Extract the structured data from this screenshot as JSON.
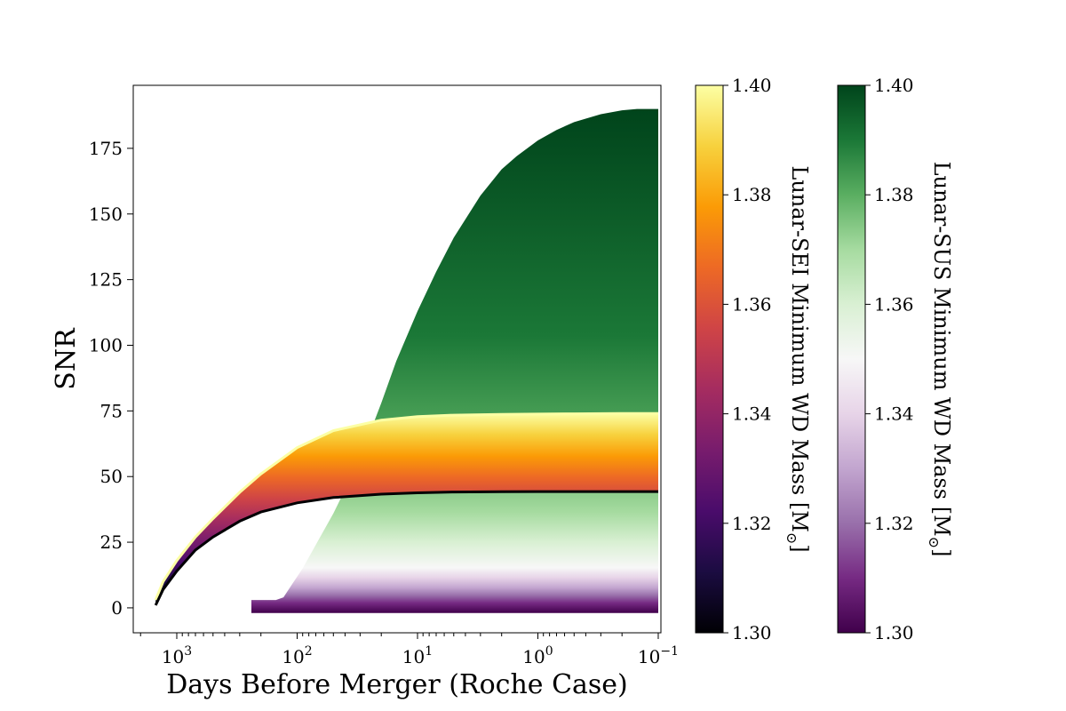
{
  "chart_data": {
    "type": "area",
    "title": "",
    "xlabel": "Days Before Merger (Roche Case)",
    "ylabel": "SNR",
    "x_scale": "log",
    "x_reversed": true,
    "xlim_days": [
      2300,
      0.095
    ],
    "ylim": [
      -9.5,
      199
    ],
    "grid": false,
    "xticks": [
      {
        "value": 1000,
        "base": "10",
        "exp": "3"
      },
      {
        "value": 100,
        "base": "10",
        "exp": "2"
      },
      {
        "value": 10,
        "base": "10",
        "exp": "1"
      },
      {
        "value": 1,
        "base": "10",
        "exp": "0"
      },
      {
        "value": 0.1,
        "base": "10",
        "exp": "−1"
      }
    ],
    "yticks": [
      0,
      25,
      50,
      75,
      100,
      125,
      150,
      175
    ],
    "series": [
      {
        "name": "Lunar-SEI",
        "colormap": "inferno",
        "band_bottom": {
          "x": [
            1500,
            1300,
            1000,
            700,
            500,
            300,
            200,
            100,
            50,
            20,
            10,
            5,
            2,
            1,
            0.5,
            0.2,
            0.1
          ],
          "y": [
            1,
            7,
            14,
            22,
            27,
            33,
            36.5,
            40,
            42,
            43.3,
            43.8,
            44.1,
            44.2,
            44.3,
            44.3,
            44.3,
            44.3
          ]
        },
        "band_top": {
          "x": [
            1500,
            1300,
            1000,
            700,
            500,
            300,
            200,
            100,
            50,
            20,
            10,
            5,
            2,
            1,
            0.5,
            0.2,
            0.1
          ],
          "y": [
            3,
            10,
            18,
            27,
            34,
            44,
            51,
            61,
            67.5,
            71.5,
            72.8,
            73.4,
            73.7,
            73.8,
            73.9,
            74,
            74
          ]
        }
      },
      {
        "name": "Lunar-SUS",
        "colormap": "PRGn",
        "band_bottom": {
          "x": [
            240,
            100,
            50,
            10,
            1,
            0.1
          ],
          "y": [
            -2,
            -2,
            -2,
            -2,
            -2,
            -2
          ]
        },
        "band_top": {
          "x": [
            240,
            200,
            150,
            130,
            110,
            90,
            70,
            50,
            40,
            30,
            20,
            15,
            10,
            7,
            5,
            3,
            2,
            1.5,
            1,
            0.7,
            0.5,
            0.3,
            0.2,
            0.15,
            0.1
          ],
          "y": [
            3,
            3,
            3,
            4,
            9,
            15,
            24,
            36,
            45,
            57,
            78,
            94,
            113,
            128,
            141,
            157,
            167,
            172,
            178,
            182,
            185,
            188,
            189.5,
            190,
            190
          ]
        }
      }
    ],
    "colorbars": [
      {
        "label": "Lunar-SEI Minimum WD Mass [M",
        "sub": "⊙",
        "close": "]",
        "colormap": "inferno",
        "range": [
          1.3,
          1.4
        ],
        "ticks": [
          "1.30",
          "1.32",
          "1.34",
          "1.36",
          "1.38",
          "1.40"
        ]
      },
      {
        "label": "Lunar-SUS Minimum WD Mass [M",
        "sub": "⊙",
        "close": "]",
        "colormap": "PRGn",
        "range": [
          1.3,
          1.4
        ],
        "ticks": [
          "1.30",
          "1.32",
          "1.34",
          "1.36",
          "1.38",
          "1.40"
        ]
      }
    ],
    "colormap_stops": {
      "inferno": [
        "#000004",
        "#1b0c41",
        "#4a0c6b",
        "#781c6d",
        "#a52c60",
        "#cf4446",
        "#ed6925",
        "#fb9b06",
        "#f7d13d",
        "#fcffa4"
      ],
      "PRGn": [
        "#40004b",
        "#762a83",
        "#9970ab",
        "#c2a5cf",
        "#e7d4e8",
        "#f7f7f7",
        "#d9f0d3",
        "#a6dba0",
        "#5aae61",
        "#1b7837",
        "#00441b"
      ]
    }
  }
}
